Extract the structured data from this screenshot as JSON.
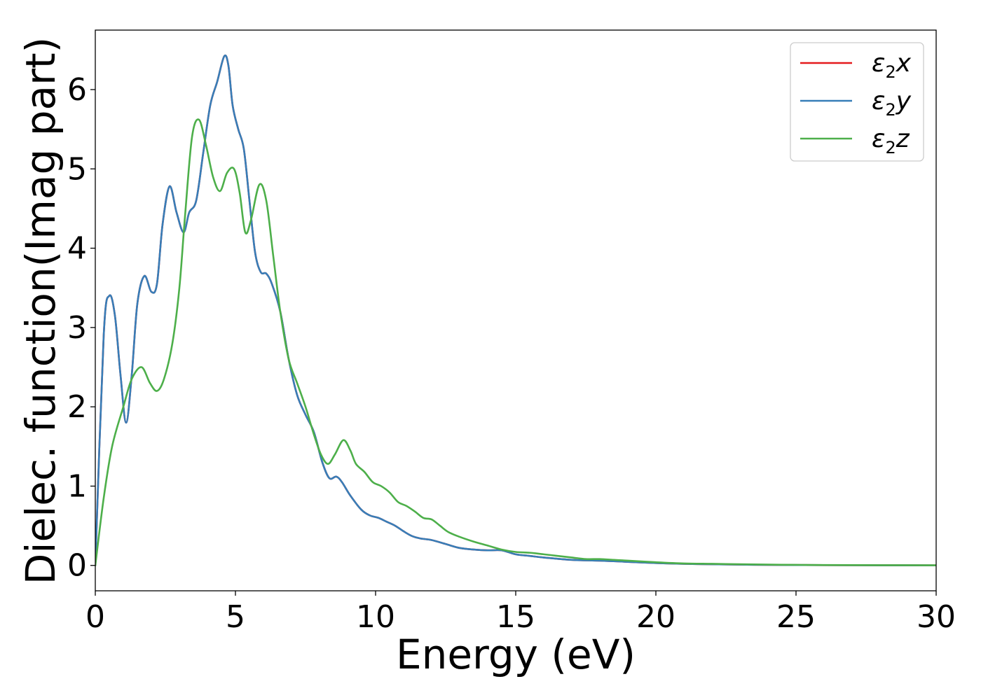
{
  "chart_data": {
    "type": "line",
    "title": "",
    "xlabel": "Energy (eV)",
    "ylabel": "Dielec. function(Imag part)",
    "xlim": [
      0,
      30
    ],
    "ylim": [
      -0.32,
      6.75
    ],
    "xticks": [
      0,
      5,
      10,
      15,
      20,
      25,
      30
    ],
    "yticks": [
      0,
      1,
      2,
      3,
      4,
      5,
      6
    ],
    "xtick_labels": [
      "0",
      "5",
      "10",
      "15",
      "20",
      "25",
      "30"
    ],
    "ytick_labels": [
      "0",
      "1",
      "2",
      "3",
      "4",
      "5",
      "6"
    ],
    "grid": false,
    "legend_position": "top-right",
    "series": [
      {
        "name": "ε2x",
        "legend": {
          "base": "ε",
          "sub": "2",
          "var": "x"
        },
        "color": "#e41a1c",
        "x": [
          0,
          0.3,
          0.5,
          0.7,
          0.9,
          1.1,
          1.3,
          1.5,
          1.75,
          2.0,
          2.2,
          2.4,
          2.65,
          2.9,
          3.15,
          3.35,
          3.6,
          3.85,
          4.1,
          4.35,
          4.6,
          4.75,
          4.9,
          5.1,
          5.3,
          5.5,
          5.7,
          5.9,
          6.1,
          6.3,
          6.6,
          6.9,
          7.2,
          7.5,
          7.8,
          8.1,
          8.35,
          8.6,
          8.8,
          9.1,
          9.5,
          9.8,
          10.1,
          10.4,
          10.7,
          11.0,
          11.3,
          11.6,
          12.0,
          12.5,
          13.0,
          13.5,
          14.0,
          14.5,
          15.0,
          15.5,
          16.0,
          17.0,
          18.0,
          19.0,
          20.0,
          21.0,
          22.0,
          23.0,
          24.0,
          25.0,
          26.0,
          28.0,
          30.0
        ],
        "y": [
          0,
          2.9,
          3.4,
          3.15,
          2.4,
          1.8,
          2.4,
          3.3,
          3.65,
          3.45,
          3.55,
          4.3,
          4.78,
          4.45,
          4.2,
          4.45,
          4.6,
          5.2,
          5.8,
          6.1,
          6.42,
          6.3,
          5.8,
          5.5,
          5.25,
          4.6,
          3.95,
          3.7,
          3.68,
          3.55,
          3.2,
          2.6,
          2.15,
          1.9,
          1.68,
          1.3,
          1.1,
          1.12,
          1.05,
          0.88,
          0.7,
          0.63,
          0.6,
          0.55,
          0.5,
          0.43,
          0.37,
          0.34,
          0.32,
          0.27,
          0.22,
          0.2,
          0.19,
          0.19,
          0.14,
          0.12,
          0.1,
          0.07,
          0.06,
          0.045,
          0.03,
          0.02,
          0.015,
          0.01,
          0.007,
          0.005,
          0.004,
          0.002,
          0.001
        ]
      },
      {
        "name": "ε2y",
        "legend": {
          "base": "ε",
          "sub": "2",
          "var": "y"
        },
        "color": "#377eb8",
        "x": [
          0,
          0.3,
          0.5,
          0.7,
          0.9,
          1.1,
          1.3,
          1.5,
          1.75,
          2.0,
          2.2,
          2.4,
          2.65,
          2.9,
          3.15,
          3.35,
          3.6,
          3.85,
          4.1,
          4.35,
          4.6,
          4.75,
          4.9,
          5.1,
          5.3,
          5.5,
          5.7,
          5.9,
          6.1,
          6.3,
          6.6,
          6.9,
          7.2,
          7.5,
          7.8,
          8.1,
          8.35,
          8.6,
          8.8,
          9.1,
          9.5,
          9.8,
          10.1,
          10.4,
          10.7,
          11.0,
          11.3,
          11.6,
          12.0,
          12.5,
          13.0,
          13.5,
          14.0,
          14.5,
          15.0,
          15.5,
          16.0,
          17.0,
          18.0,
          19.0,
          20.0,
          21.0,
          22.0,
          23.0,
          24.0,
          25.0,
          26.0,
          28.0,
          30.0
        ],
        "y": [
          0,
          2.9,
          3.4,
          3.15,
          2.4,
          1.8,
          2.4,
          3.3,
          3.65,
          3.45,
          3.55,
          4.3,
          4.78,
          4.45,
          4.2,
          4.45,
          4.6,
          5.2,
          5.8,
          6.1,
          6.42,
          6.3,
          5.8,
          5.5,
          5.25,
          4.6,
          3.95,
          3.7,
          3.68,
          3.55,
          3.2,
          2.6,
          2.15,
          1.9,
          1.68,
          1.3,
          1.1,
          1.12,
          1.05,
          0.88,
          0.7,
          0.63,
          0.6,
          0.55,
          0.5,
          0.43,
          0.37,
          0.34,
          0.32,
          0.27,
          0.22,
          0.2,
          0.19,
          0.19,
          0.14,
          0.12,
          0.1,
          0.07,
          0.06,
          0.045,
          0.03,
          0.02,
          0.015,
          0.01,
          0.007,
          0.005,
          0.004,
          0.002,
          0.001
        ]
      },
      {
        "name": "ε2z",
        "legend": {
          "base": "ε",
          "sub": "2",
          "var": "z"
        },
        "color": "#4daf4a",
        "x": [
          0,
          0.3,
          0.6,
          1.0,
          1.3,
          1.65,
          1.95,
          2.2,
          2.45,
          2.75,
          3.0,
          3.2,
          3.45,
          3.7,
          3.95,
          4.2,
          4.45,
          4.7,
          4.95,
          5.15,
          5.35,
          5.55,
          5.85,
          6.1,
          6.35,
          6.6,
          6.9,
          7.2,
          7.5,
          7.8,
          8.05,
          8.3,
          8.55,
          8.85,
          9.1,
          9.3,
          9.6,
          9.9,
          10.2,
          10.5,
          10.8,
          11.1,
          11.4,
          11.7,
          12.0,
          12.3,
          12.6,
          13.0,
          13.5,
          14.0,
          14.5,
          15.0,
          15.5,
          16.0,
          16.5,
          17.0,
          17.5,
          18.0,
          18.5,
          19.0,
          20.0,
          21.0,
          22.0,
          23.0,
          24.0,
          25.0,
          26.0,
          28.0,
          30.0
        ],
        "y": [
          0,
          0.85,
          1.5,
          2.0,
          2.35,
          2.5,
          2.3,
          2.2,
          2.35,
          2.8,
          3.5,
          4.4,
          5.4,
          5.62,
          5.3,
          4.9,
          4.72,
          4.95,
          5.0,
          4.7,
          4.2,
          4.35,
          4.8,
          4.6,
          3.9,
          3.2,
          2.6,
          2.3,
          2.0,
          1.65,
          1.4,
          1.28,
          1.4,
          1.58,
          1.45,
          1.28,
          1.18,
          1.05,
          1.0,
          0.92,
          0.8,
          0.75,
          0.68,
          0.6,
          0.58,
          0.5,
          0.42,
          0.36,
          0.3,
          0.25,
          0.2,
          0.17,
          0.16,
          0.14,
          0.12,
          0.1,
          0.08,
          0.08,
          0.07,
          0.06,
          0.04,
          0.025,
          0.02,
          0.015,
          0.01,
          0.007,
          0.005,
          0.003,
          0.002
        ]
      }
    ]
  }
}
